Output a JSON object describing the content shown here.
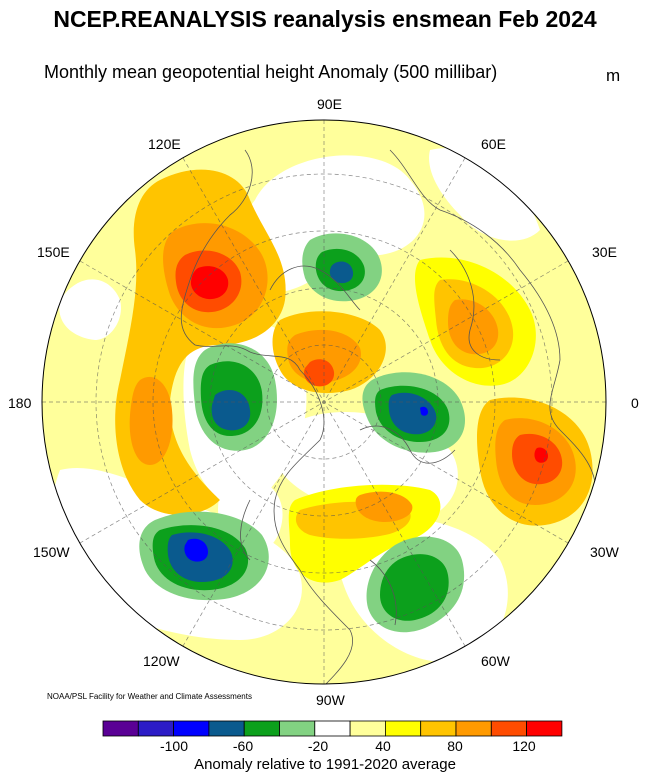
{
  "title": "NCEP.REANALYSIS reanalysis ensmean Feb 2024",
  "subtitle": "Monthly mean geopotential height Anomaly (500 millibar)",
  "unit": "m",
  "longitude_labels": {
    "e90": "90E",
    "e120": "120E",
    "e60": "60E",
    "e150": "150E",
    "e30": "30E",
    "d180": "180",
    "d0": "0",
    "w150": "150W",
    "w30": "30W",
    "w120": "120W",
    "w60": "60W",
    "w90": "90W"
  },
  "credit": "NOAA/PSL Facility for Weather and Climate Assessments",
  "colorbar": {
    "label": "Anomaly relative to 1991-2020 average",
    "ticks": [
      "-100",
      "-60",
      "-20",
      "40",
      "80",
      "120"
    ],
    "colors": [
      "#5a0095",
      "#2c1cc6",
      "#0000ff",
      "#0a5a8e",
      "#0ca01c",
      "#82d282",
      "#ffffff",
      "#ffff9b",
      "#ffff00",
      "#ffc400",
      "#ff9a00",
      "#ff4c00",
      "#ff0000"
    ]
  },
  "chart_data": {
    "type": "polar-stereographic anomaly map",
    "variable": "500 mb geopotential height anomaly",
    "period": "Feb 2024",
    "units": "m",
    "levels": [
      -140,
      -120,
      -100,
      -80,
      -60,
      -40,
      -20,
      20,
      40,
      60,
      80,
      100,
      120,
      140
    ],
    "notable_features": [
      {
        "region": "East Siberia / Kamchatka",
        "sign": "positive",
        "peak_bin": "100 to 120"
      },
      {
        "region": "Kara Sea / Arctic",
        "sign": "negative",
        "peak_bin": "-60 to -80"
      },
      {
        "region": "Bering Sea / Alaska",
        "sign": "negative",
        "peak_bin": "-60 to -80"
      },
      {
        "region": "Greenland / Iceland",
        "sign": "negative",
        "peak_bin": "-60 to -80"
      },
      {
        "region": "Gulf of Alaska / NE Pacific",
        "sign": "negative",
        "peak_bin": "-100 to -120"
      },
      {
        "region": "Central North Atlantic",
        "sign": "negative",
        "peak_bin": "-40 to -60"
      },
      {
        "region": "Scandinavia / NW Russia",
        "sign": "positive",
        "peak_bin": "60 to 80"
      },
      {
        "region": "Western Europe / Iberia",
        "sign": "positive",
        "peak_bin": "100 to 120"
      },
      {
        "region": "Canadian Arctic / Hudson Bay",
        "sign": "positive",
        "peak_bin": "40 to 60"
      },
      {
        "region": "Central Arctic (Siberian side)",
        "sign": "positive",
        "peak_bin": "80 to 100"
      }
    ]
  }
}
